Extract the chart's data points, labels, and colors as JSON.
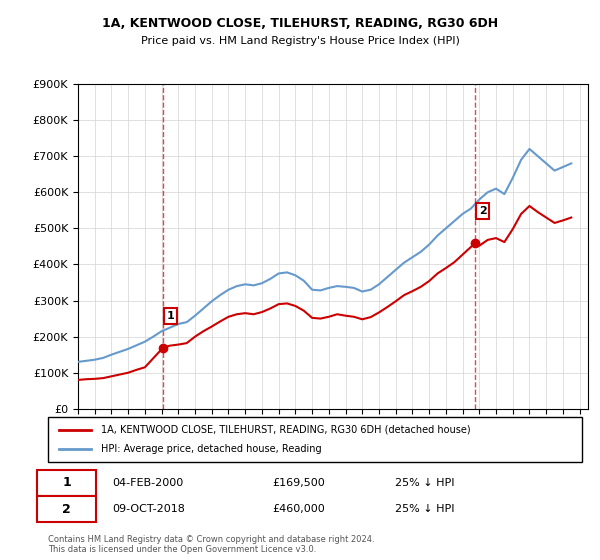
{
  "title": "1A, KENTWOOD CLOSE, TILEHURST, READING, RG30 6DH",
  "subtitle": "Price paid vs. HM Land Registry's House Price Index (HPI)",
  "hpi_label": "HPI: Average price, detached house, Reading",
  "house_label": "1A, KENTWOOD CLOSE, TILEHURST, READING, RG30 6DH (detached house)",
  "annotation1": {
    "num": "1",
    "date": "04-FEB-2000",
    "price": "£169,500",
    "pct": "25% ↓ HPI",
    "year": 2000.09
  },
  "annotation2": {
    "num": "2",
    "date": "09-OCT-2018",
    "price": "£460,000",
    "pct": "25% ↓ HPI",
    "year": 2018.77
  },
  "house_color": "#cc0000",
  "hpi_color": "#6699cc",
  "ylim": [
    0,
    900000
  ],
  "xlim_start": 1995.0,
  "xlim_end": 2025.5,
  "footnote": "Contains HM Land Registry data © Crown copyright and database right 2024.\nThis data is licensed under the Open Government Licence v3.0.",
  "hpi_x": [
    1995.0,
    1995.5,
    1996.0,
    1996.5,
    1997.0,
    1997.5,
    1998.0,
    1998.5,
    1999.0,
    1999.5,
    2000.0,
    2000.5,
    2001.0,
    2001.5,
    2002.0,
    2002.5,
    2003.0,
    2003.5,
    2004.0,
    2004.5,
    2005.0,
    2005.5,
    2006.0,
    2006.5,
    2007.0,
    2007.5,
    2008.0,
    2008.5,
    2009.0,
    2009.5,
    2010.0,
    2010.5,
    2011.0,
    2011.5,
    2012.0,
    2012.5,
    2013.0,
    2013.5,
    2014.0,
    2014.5,
    2015.0,
    2015.5,
    2016.0,
    2016.5,
    2017.0,
    2017.5,
    2018.0,
    2018.5,
    2019.0,
    2019.5,
    2020.0,
    2020.5,
    2021.0,
    2021.5,
    2022.0,
    2022.5,
    2023.0,
    2023.5,
    2024.0,
    2024.5
  ],
  "hpi_y": [
    130000,
    133000,
    136000,
    141000,
    150000,
    158000,
    166000,
    176000,
    186000,
    200000,
    215000,
    225000,
    235000,
    240000,
    258000,
    278000,
    298000,
    315000,
    330000,
    340000,
    345000,
    342000,
    348000,
    360000,
    375000,
    378000,
    370000,
    355000,
    330000,
    328000,
    335000,
    340000,
    338000,
    335000,
    325000,
    330000,
    345000,
    365000,
    385000,
    405000,
    420000,
    435000,
    455000,
    480000,
    500000,
    520000,
    540000,
    555000,
    580000,
    600000,
    610000,
    595000,
    640000,
    690000,
    720000,
    700000,
    680000,
    660000,
    670000,
    680000
  ],
  "house_x": [
    1995.0,
    1995.5,
    1996.0,
    1996.5,
    1997.0,
    1997.5,
    1998.0,
    1998.5,
    1999.0,
    1999.5,
    2000.09,
    2000.5,
    2001.0,
    2001.5,
    2002.0,
    2002.5,
    2003.0,
    2003.5,
    2004.0,
    2004.5,
    2005.0,
    2005.5,
    2006.0,
    2006.5,
    2007.0,
    2007.5,
    2008.0,
    2008.5,
    2009.0,
    2009.5,
    2010.0,
    2010.5,
    2011.0,
    2011.5,
    2012.0,
    2012.5,
    2013.0,
    2013.5,
    2014.0,
    2014.5,
    2015.0,
    2015.5,
    2016.0,
    2016.5,
    2017.0,
    2017.5,
    2018.77,
    2019.0,
    2019.5,
    2020.0,
    2020.5,
    2021.0,
    2021.5,
    2022.0,
    2022.5,
    2023.0,
    2023.5,
    2024.0,
    2024.5
  ],
  "house_y": [
    80000,
    82000,
    83000,
    85000,
    90000,
    95000,
    100000,
    108000,
    115000,
    140000,
    169500,
    175000,
    178000,
    182000,
    200000,
    215000,
    228000,
    242000,
    255000,
    262000,
    265000,
    262000,
    268000,
    278000,
    290000,
    292000,
    285000,
    272000,
    252000,
    250000,
    255000,
    262000,
    258000,
    255000,
    248000,
    254000,
    267000,
    282000,
    298000,
    315000,
    326000,
    338000,
    354000,
    375000,
    390000,
    406000,
    460000,
    452000,
    468000,
    473000,
    462000,
    498000,
    540000,
    562000,
    545000,
    530000,
    515000,
    522000,
    530000
  ]
}
